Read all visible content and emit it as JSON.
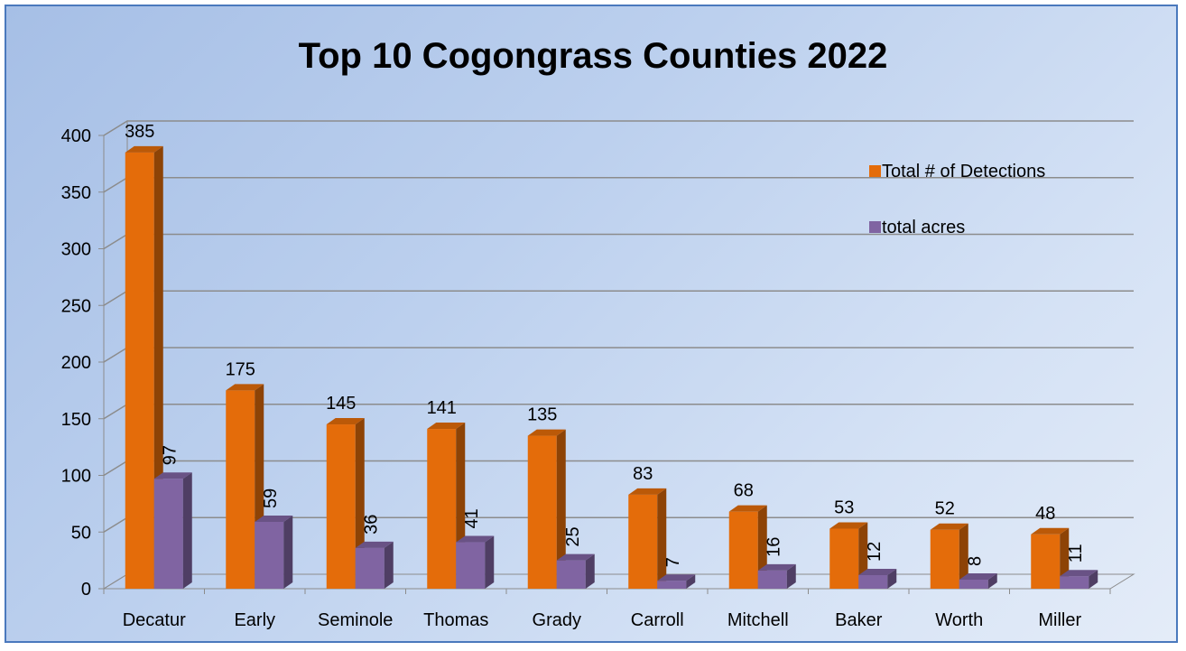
{
  "chart_data": {
    "type": "bar",
    "title": "Top 10 Cogongrass Counties  2022",
    "categories": [
      "Decatur",
      "Early",
      "Seminole",
      "Thomas",
      "Grady",
      "Carroll",
      "Mitchell",
      "Baker",
      "Worth",
      "Miller"
    ],
    "series": [
      {
        "name": "Total # of Detections",
        "values": [
          385,
          175,
          145,
          141,
          135,
          83,
          68,
          53,
          52,
          48
        ],
        "color": "#e46c0a"
      },
      {
        "name": "total acres",
        "values": [
          97,
          59,
          36,
          41,
          25,
          7,
          16,
          12,
          8,
          11
        ],
        "color": "#8064a2"
      }
    ],
    "yticks": [
      0,
      50,
      100,
      150,
      200,
      250,
      300,
      350,
      400
    ],
    "ylim": [
      0,
      400
    ],
    "grid": true,
    "legend_position": "top-right",
    "xlabel": "",
    "ylabel": ""
  }
}
